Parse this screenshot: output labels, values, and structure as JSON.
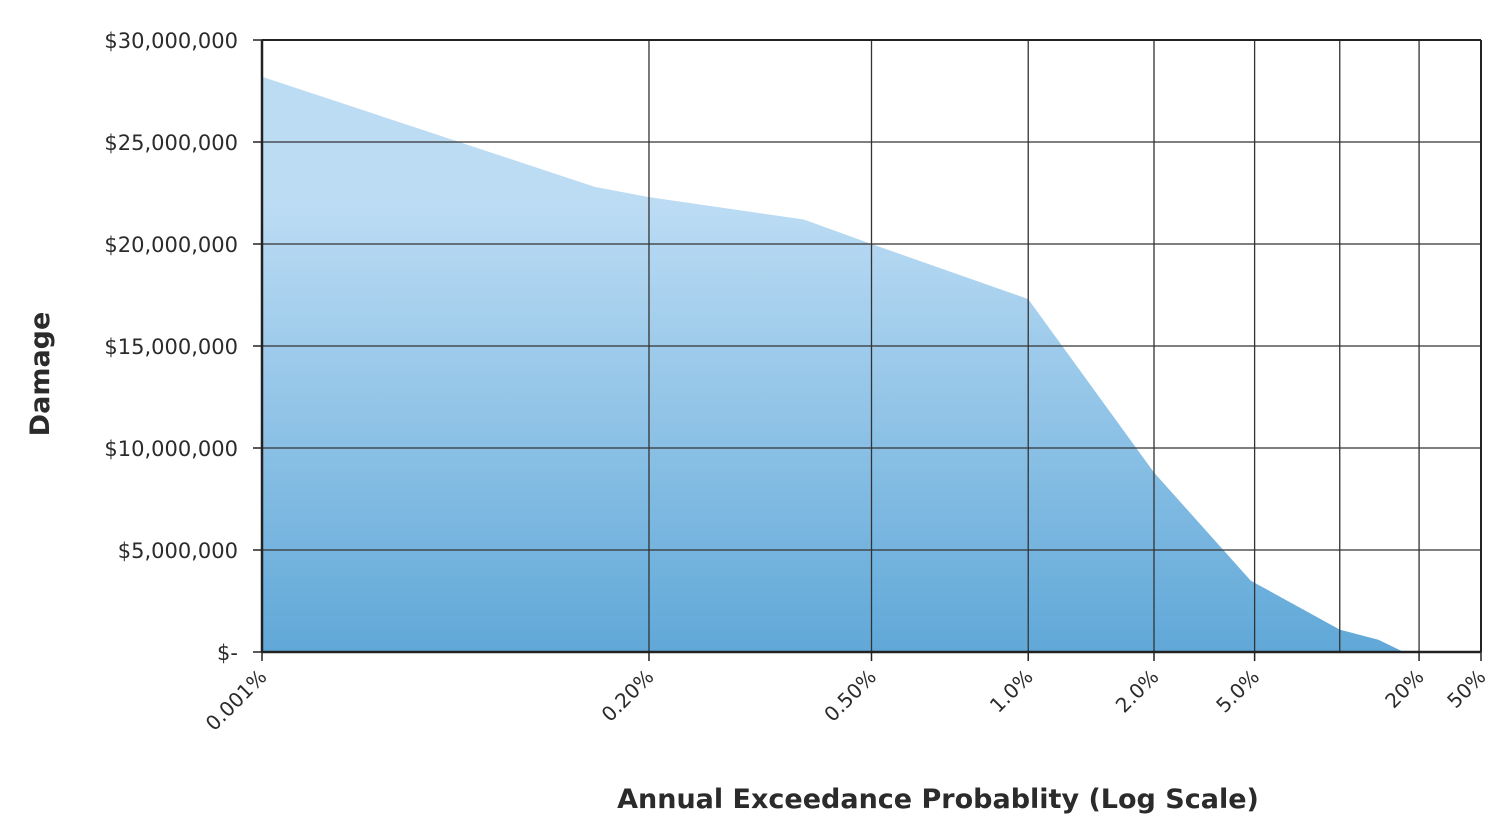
{
  "chart_data": {
    "type": "area",
    "title": "",
    "xlabel": "Annual Exceedance Probablity (Log Scale)",
    "ylabel": "Damage",
    "ylim": [
      0,
      30000000
    ],
    "y_ticks": [
      {
        "value": 0,
        "label": "$-"
      },
      {
        "value": 5000000,
        "label": "$5,000,000"
      },
      {
        "value": 10000000,
        "label": "$10,000,000"
      },
      {
        "value": 15000000,
        "label": "$15,000,000"
      },
      {
        "value": 20000000,
        "label": "$20,000,000"
      },
      {
        "value": 25000000,
        "label": "$25,000,000"
      },
      {
        "value": 30000000,
        "label": "$30,000,000"
      }
    ],
    "x_ticks": [
      {
        "pos": 0,
        "label": "0.001%"
      },
      {
        "pos": 2,
        "label": "0.20%"
      },
      {
        "pos": 3.15,
        "label": "0.50%"
      },
      {
        "pos": 3.96,
        "label": "1.0%"
      },
      {
        "pos": 4.61,
        "label": "2.0%"
      },
      {
        "pos": 5.13,
        "label": "5.0%"
      },
      {
        "pos": 5.98,
        "label": "20%"
      },
      {
        "pos": 6.3,
        "label": "50%"
      }
    ],
    "x_grid_only": [
      5.57
    ],
    "xlim": [
      0,
      6.3
    ],
    "grid": true,
    "legend": "none",
    "fill_top_color": "#bcdcf4",
    "fill_bottom_color": "#60a8d8",
    "series": [
      {
        "points": [
          {
            "x": 0,
            "y": 28200000
          },
          {
            "x": 1.72,
            "y": 22800000
          },
          {
            "x": 2.0,
            "y": 22300000
          },
          {
            "x": 2.8,
            "y": 21200000
          },
          {
            "x": 3.15,
            "y": 20000000
          },
          {
            "x": 3.96,
            "y": 17300000
          },
          {
            "x": 4.61,
            "y": 8800000
          },
          {
            "x": 5.11,
            "y": 3500000
          },
          {
            "x": 5.57,
            "y": 1100000
          },
          {
            "x": 5.77,
            "y": 600000
          },
          {
            "x": 5.9,
            "y": 0
          }
        ]
      }
    ]
  }
}
